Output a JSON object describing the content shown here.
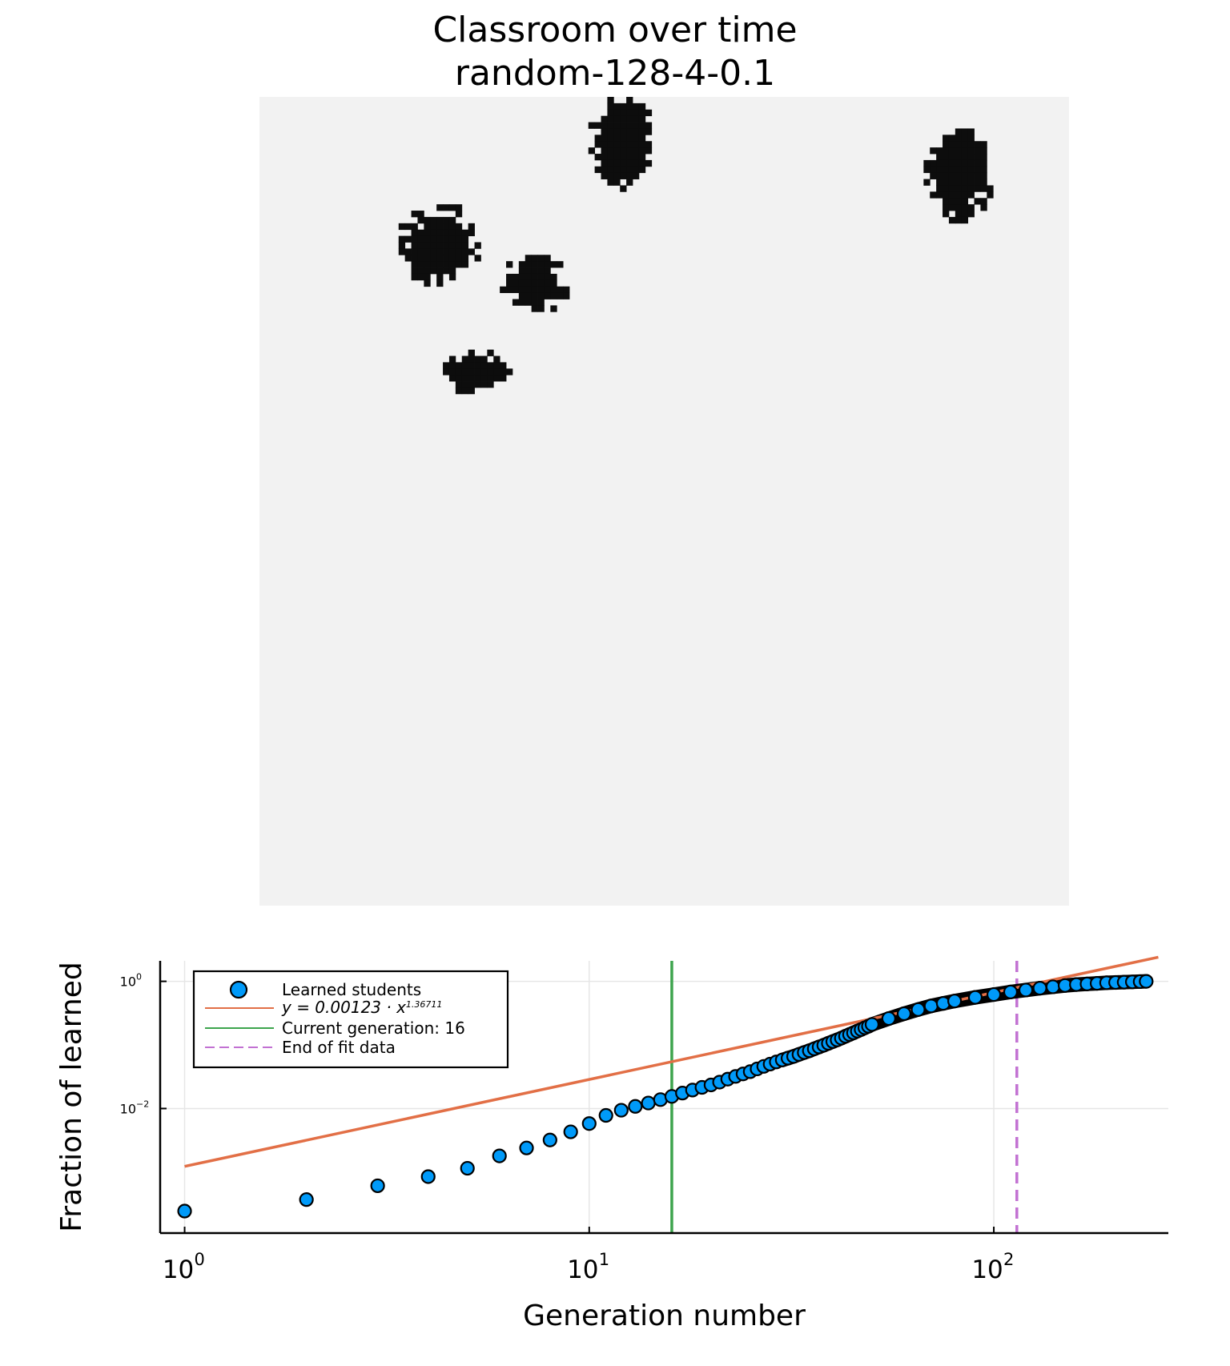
{
  "chart_data": [
    {
      "type": "heatmap",
      "title": "Classroom over time",
      "subtitle": "random-128-4-0.1",
      "grid_size": [
        128,
        128
      ],
      "colors": {
        "empty": "#f2f2f2",
        "learned": "#0d0d0d"
      },
      "clusters": [
        {
          "center_col": 57,
          "center_row": 7,
          "radius_cols": 4,
          "radius_rows": 6
        },
        {
          "center_col": 28,
          "center_row": 23,
          "radius_cols": 5,
          "radius_rows": 5
        },
        {
          "center_col": 43,
          "center_row": 29,
          "radius_cols": 4,
          "radius_rows": 4
        },
        {
          "center_col": 110,
          "center_row": 12,
          "radius_cols": 4,
          "radius_rows": 6
        },
        {
          "center_col": 34,
          "center_row": 43,
          "radius_cols": 4,
          "radius_rows": 3
        }
      ]
    },
    {
      "type": "scatter",
      "xlabel": "Generation number",
      "ylabel": "Fraction of learned",
      "xscale": "log",
      "yscale": "log",
      "xlim": [
        0.87,
        270
      ],
      "ylim": [
        0.00011,
        2.1
      ],
      "x_ticks": [
        {
          "base": "10",
          "exp": "0"
        },
        {
          "base": "10",
          "exp": "1"
        },
        {
          "base": "10",
          "exp": "2"
        }
      ],
      "y_ticks": [
        {
          "base": "10",
          "exp": "0"
        },
        {
          "base": "10",
          "exp": "−2"
        }
      ],
      "grid": true,
      "legend_position": "top-left",
      "series": [
        {
          "name": "Learned students",
          "kind": "scatter",
          "color": "#009af9",
          "x_range": [
            1,
            238
          ],
          "x": [
            1,
            2,
            3,
            4,
            5,
            6,
            7,
            8,
            9,
            10,
            11,
            12,
            13,
            14,
            15,
            16,
            17,
            18,
            19,
            20,
            21,
            22,
            23,
            24,
            25,
            26,
            27,
            28,
            29,
            30,
            31,
            32,
            33,
            34,
            35,
            36,
            37,
            38,
            39,
            40,
            41,
            42,
            43,
            44,
            45,
            46,
            47,
            48,
            49,
            50,
            55,
            60,
            65,
            70,
            75,
            80,
            90,
            100,
            110,
            120,
            130,
            140,
            150,
            160,
            170,
            180,
            190,
            200,
            210,
            220,
            230,
            238
          ],
          "y": [
            0.000244,
            0.00037,
            0.00061,
            0.00085,
            0.00115,
            0.0018,
            0.0024,
            0.0032,
            0.0043,
            0.0058,
            0.0078,
            0.0094,
            0.0108,
            0.0122,
            0.0138,
            0.0155,
            0.0175,
            0.0195,
            0.0215,
            0.0235,
            0.026,
            0.029,
            0.032,
            0.035,
            0.038,
            0.042,
            0.046,
            0.05,
            0.054,
            0.058,
            0.062,
            0.066,
            0.071,
            0.076,
            0.081,
            0.087,
            0.093,
            0.099,
            0.106,
            0.113,
            0.12,
            0.128,
            0.137,
            0.146,
            0.155,
            0.165,
            0.175,
            0.186,
            0.197,
            0.21,
            0.26,
            0.31,
            0.36,
            0.41,
            0.45,
            0.49,
            0.56,
            0.62,
            0.68,
            0.73,
            0.78,
            0.82,
            0.86,
            0.89,
            0.91,
            0.93,
            0.95,
            0.96,
            0.97,
            0.98,
            0.99,
            1.0
          ]
        },
        {
          "name": "y = 0.00123 · x",
          "name_superscript": "1.36711",
          "kind": "line",
          "color": "#e26f46",
          "coefficient": 0.00123,
          "exponent": 1.36711,
          "x": [
            1,
            255
          ]
        },
        {
          "name": "Current generation: 16",
          "kind": "vline",
          "color": "#3da44d",
          "x": 16
        },
        {
          "name": "End of fit data",
          "kind": "vline-dashed",
          "color": "#c271d2",
          "x": 114
        }
      ]
    }
  ]
}
